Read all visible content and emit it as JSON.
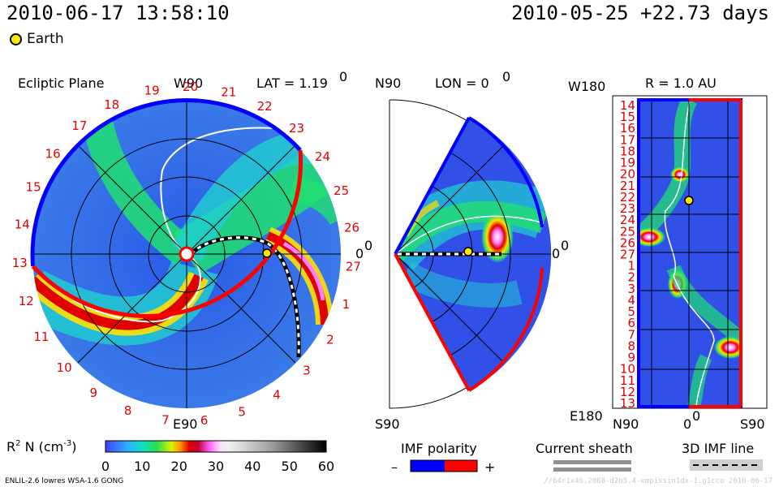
{
  "header": {
    "timestamp": "2010-06-17 13:58:10",
    "epoch": "2010-05-25 +22.73 days",
    "earth_legend": "Earth"
  },
  "panels": {
    "ecliptic": {
      "title": "Ecliptic Plane",
      "top_label": "W90",
      "bottom_label": "E90",
      "lat_label": "LAT = 1.19",
      "lat_sup": "0",
      "right_label": "0",
      "right_sup": "0",
      "rim_ticks": [
        "19",
        "20",
        "21",
        "22",
        "23",
        "24",
        "25",
        "26",
        "27",
        "1",
        "2",
        "3",
        "4",
        "5",
        "6",
        "7",
        "8",
        "9",
        "10",
        "11",
        "12",
        "13",
        "14",
        "15",
        "16",
        "17",
        "18"
      ]
    },
    "meridional": {
      "top_label": "N90",
      "bottom_label": "S90",
      "lon_label": "LON = 0",
      "lon_sup": "0",
      "right_label": "0",
      "right_sup": "0"
    },
    "radial": {
      "top_left_label": "W180",
      "bottom_left_label": "E180",
      "r_label": "R = 1.0 AU",
      "bottom_n": "N90",
      "bottom_zero": "0",
      "bottom_zero_sup": "0",
      "bottom_s": "S90",
      "rotation_ticks": [
        "14",
        "15",
        "16",
        "17",
        "18",
        "19",
        "20",
        "21",
        "22",
        "23",
        "24",
        "25",
        "26",
        "27",
        "1",
        "2",
        "3",
        "4",
        "5",
        "6",
        "7",
        "8",
        "9",
        "10",
        "11",
        "12",
        "13"
      ]
    }
  },
  "colorbar": {
    "label": "R",
    "label_sup": "2",
    "label_rest": " N (cm",
    "label_sup2": "-3",
    "label_end": ")",
    "ticks": [
      "0",
      "10",
      "20",
      "30",
      "40",
      "50",
      "60"
    ]
  },
  "imf_legend": {
    "title": "IMF polarity",
    "minus": "–",
    "plus": "+",
    "neg_color": "#0000ff",
    "pos_color": "#ff0000"
  },
  "sheath_legend": {
    "title": "Current sheath"
  },
  "imf3d_legend": {
    "title": "3D IMF line"
  },
  "footer": {
    "credit": "ENLIL-2.6 lowres WSA-1.6 GONG",
    "watermark": "//64r1x46.2068-d2b5.4-empissin1dx-1.g1cco   2010-06-17"
  },
  "chart_data": {
    "type": "heatmap",
    "quantity": "R2 N (cm-3)",
    "colorbar_range": [
      0,
      60
    ],
    "colorbar_ticks": [
      0,
      10,
      20,
      30,
      40,
      50,
      60
    ],
    "earth_position": {
      "lat_deg": 1.19,
      "r_au": 1.0
    },
    "panels": [
      "Ecliptic Plane",
      "LON = 0",
      "R = 1.0 AU"
    ]
  }
}
